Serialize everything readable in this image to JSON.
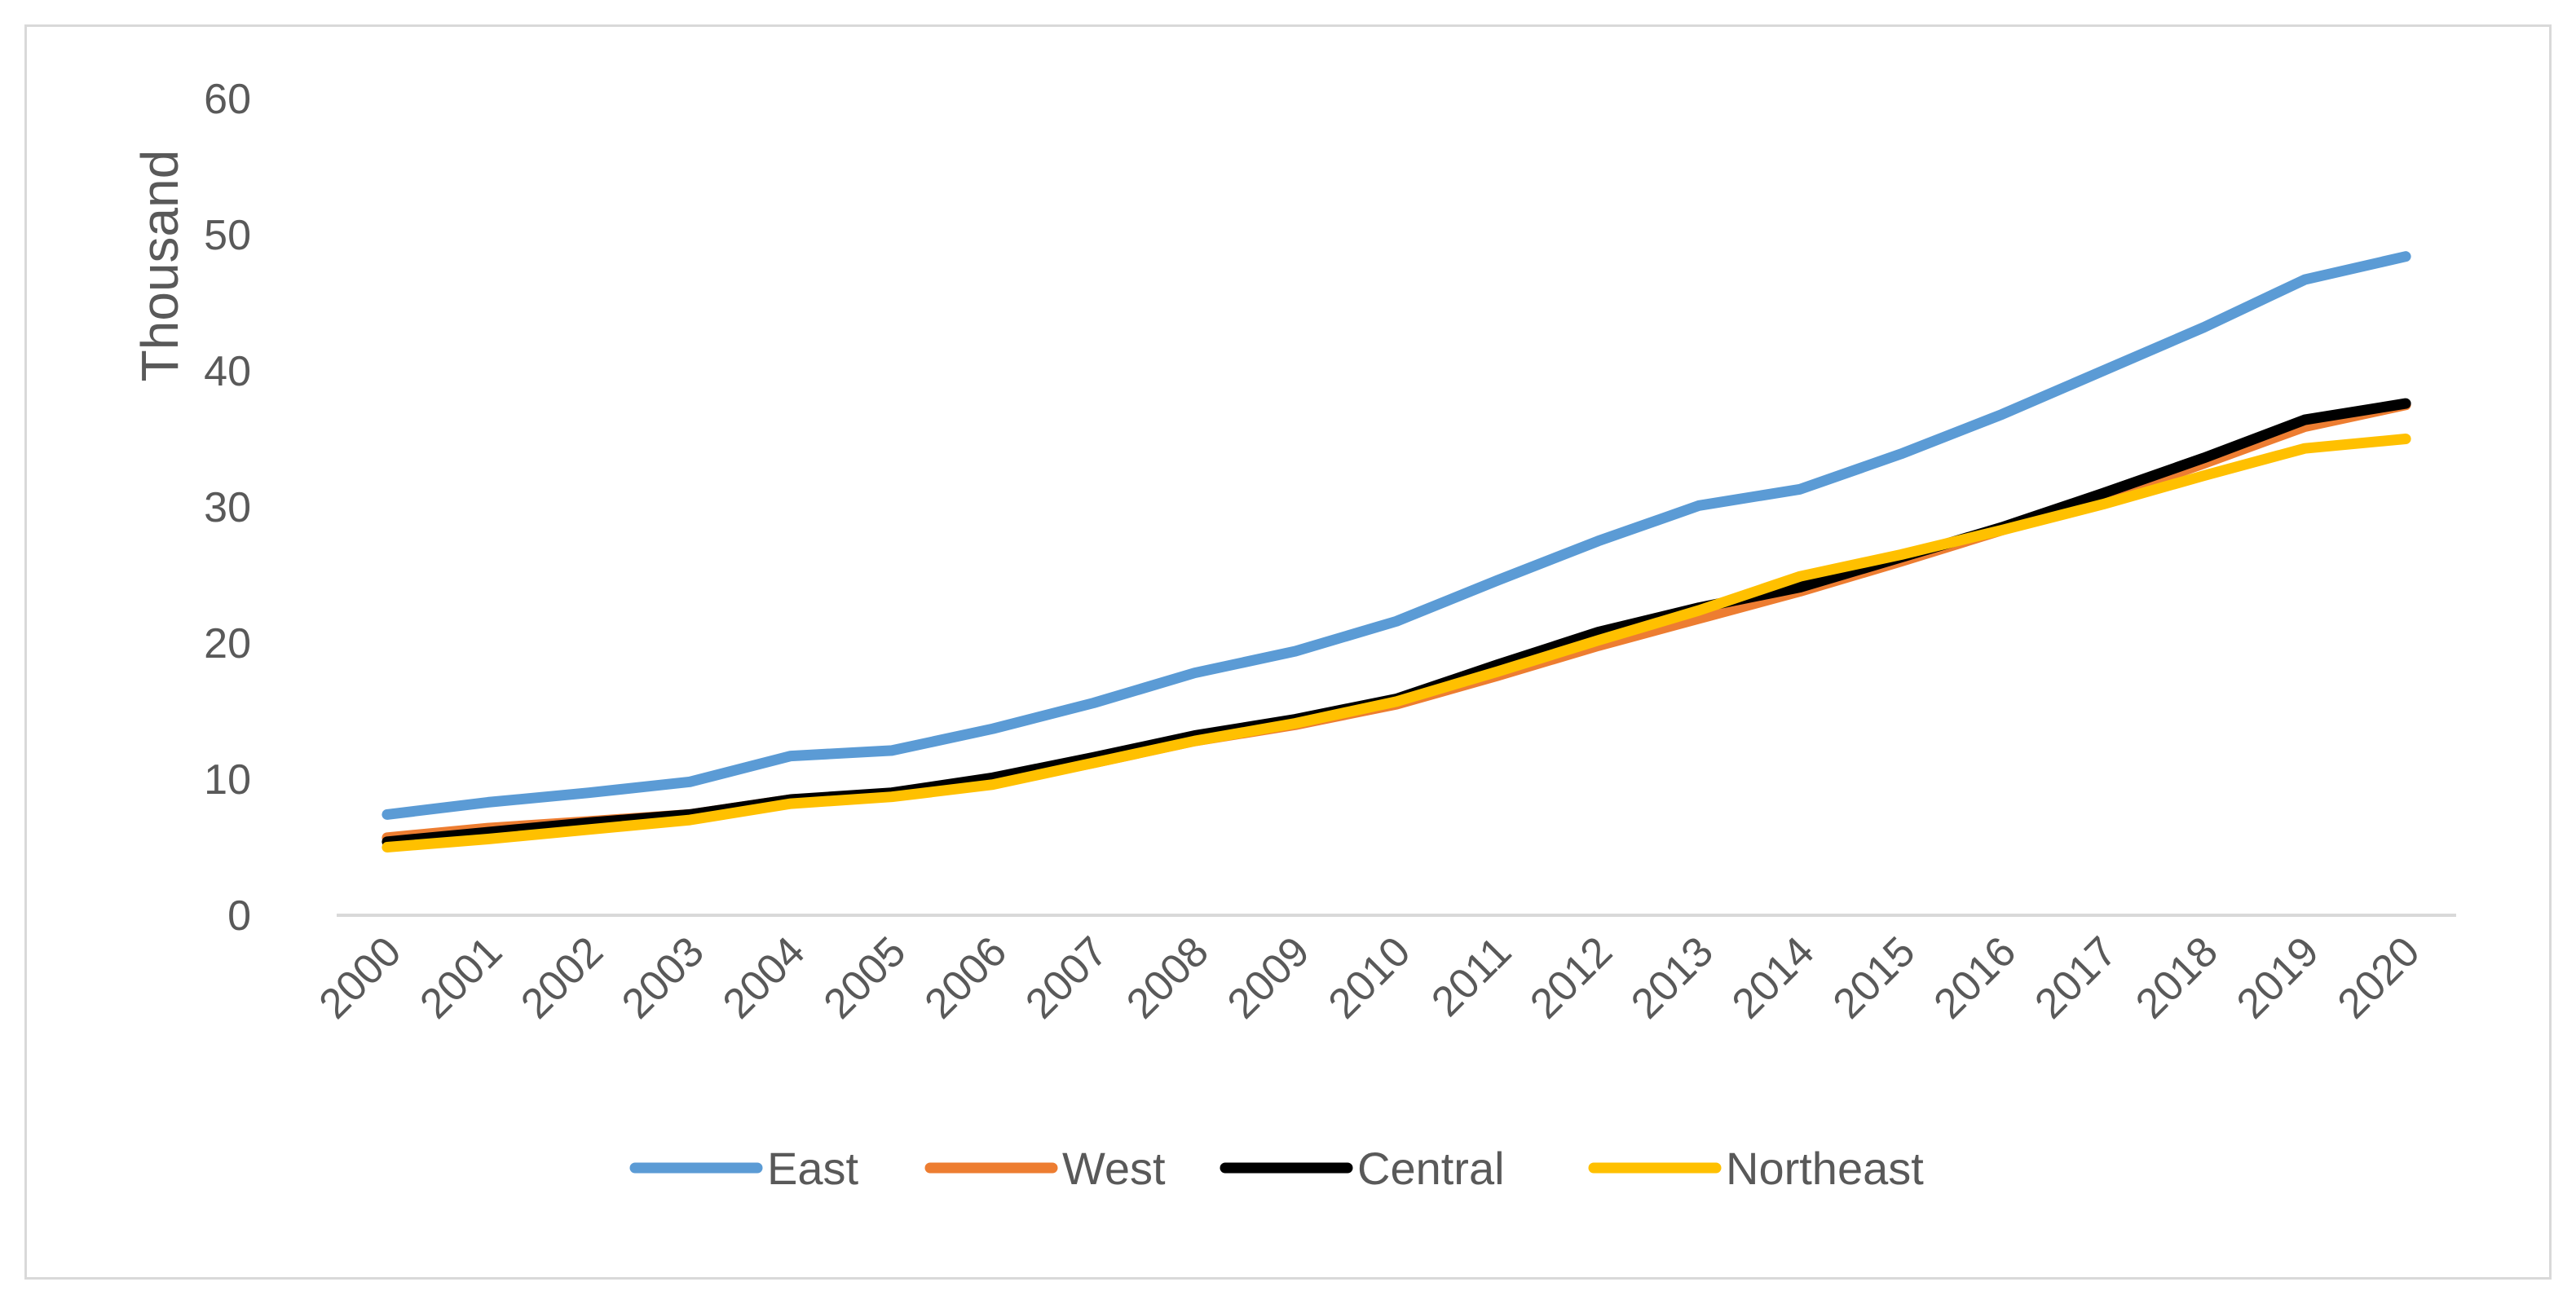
{
  "chart_data": {
    "type": "line",
    "title": "",
    "xlabel": "",
    "ylabel": "Thousand",
    "ylim": [
      0,
      60
    ],
    "yticks": [
      "0",
      "10",
      "20",
      "30",
      "40",
      "50",
      "60"
    ],
    "grid": false,
    "legend_position": "bottom",
    "categories": [
      "2000",
      "2001",
      "2002",
      "2003",
      "2004",
      "2005",
      "2006",
      "2007",
      "2008",
      "2009",
      "2010",
      "2011",
      "2012",
      "2013",
      "2014",
      "2015",
      "2016",
      "2017",
      "2018",
      "2019",
      "2020"
    ],
    "series": [
      {
        "name": "East",
        "color": "#5b9bd5",
        "values": [
          7.4,
          8.3,
          9.0,
          9.8,
          11.7,
          12.1,
          13.7,
          15.6,
          17.8,
          19.4,
          21.6,
          24.6,
          27.5,
          30.1,
          31.3,
          33.9,
          36.8,
          40.0,
          43.2,
          46.7,
          48.4
        ]
      },
      {
        "name": "West",
        "color": "#ed7d31",
        "values": [
          5.7,
          6.4,
          6.9,
          7.4,
          8.5,
          8.8,
          9.7,
          11.2,
          12.8,
          14.0,
          15.5,
          17.6,
          19.8,
          21.8,
          23.8,
          26.0,
          28.3,
          30.6,
          33.2,
          35.9,
          37.5
        ]
      },
      {
        "name": "Central",
        "color": "#000000",
        "values": [
          5.4,
          6.1,
          6.8,
          7.4,
          8.5,
          9.0,
          10.1,
          11.6,
          13.2,
          14.4,
          15.9,
          18.4,
          20.8,
          22.6,
          24.1,
          26.3,
          28.5,
          31.0,
          33.6,
          36.4,
          37.6
        ]
      },
      {
        "name": "Northeast",
        "color": "#ffc000",
        "values": [
          5.0,
          5.6,
          6.3,
          7.0,
          8.2,
          8.7,
          9.6,
          11.2,
          12.8,
          14.1,
          15.7,
          17.9,
          20.2,
          22.4,
          24.9,
          26.5,
          28.3,
          30.2,
          32.3,
          34.3,
          35.0
        ]
      }
    ]
  }
}
